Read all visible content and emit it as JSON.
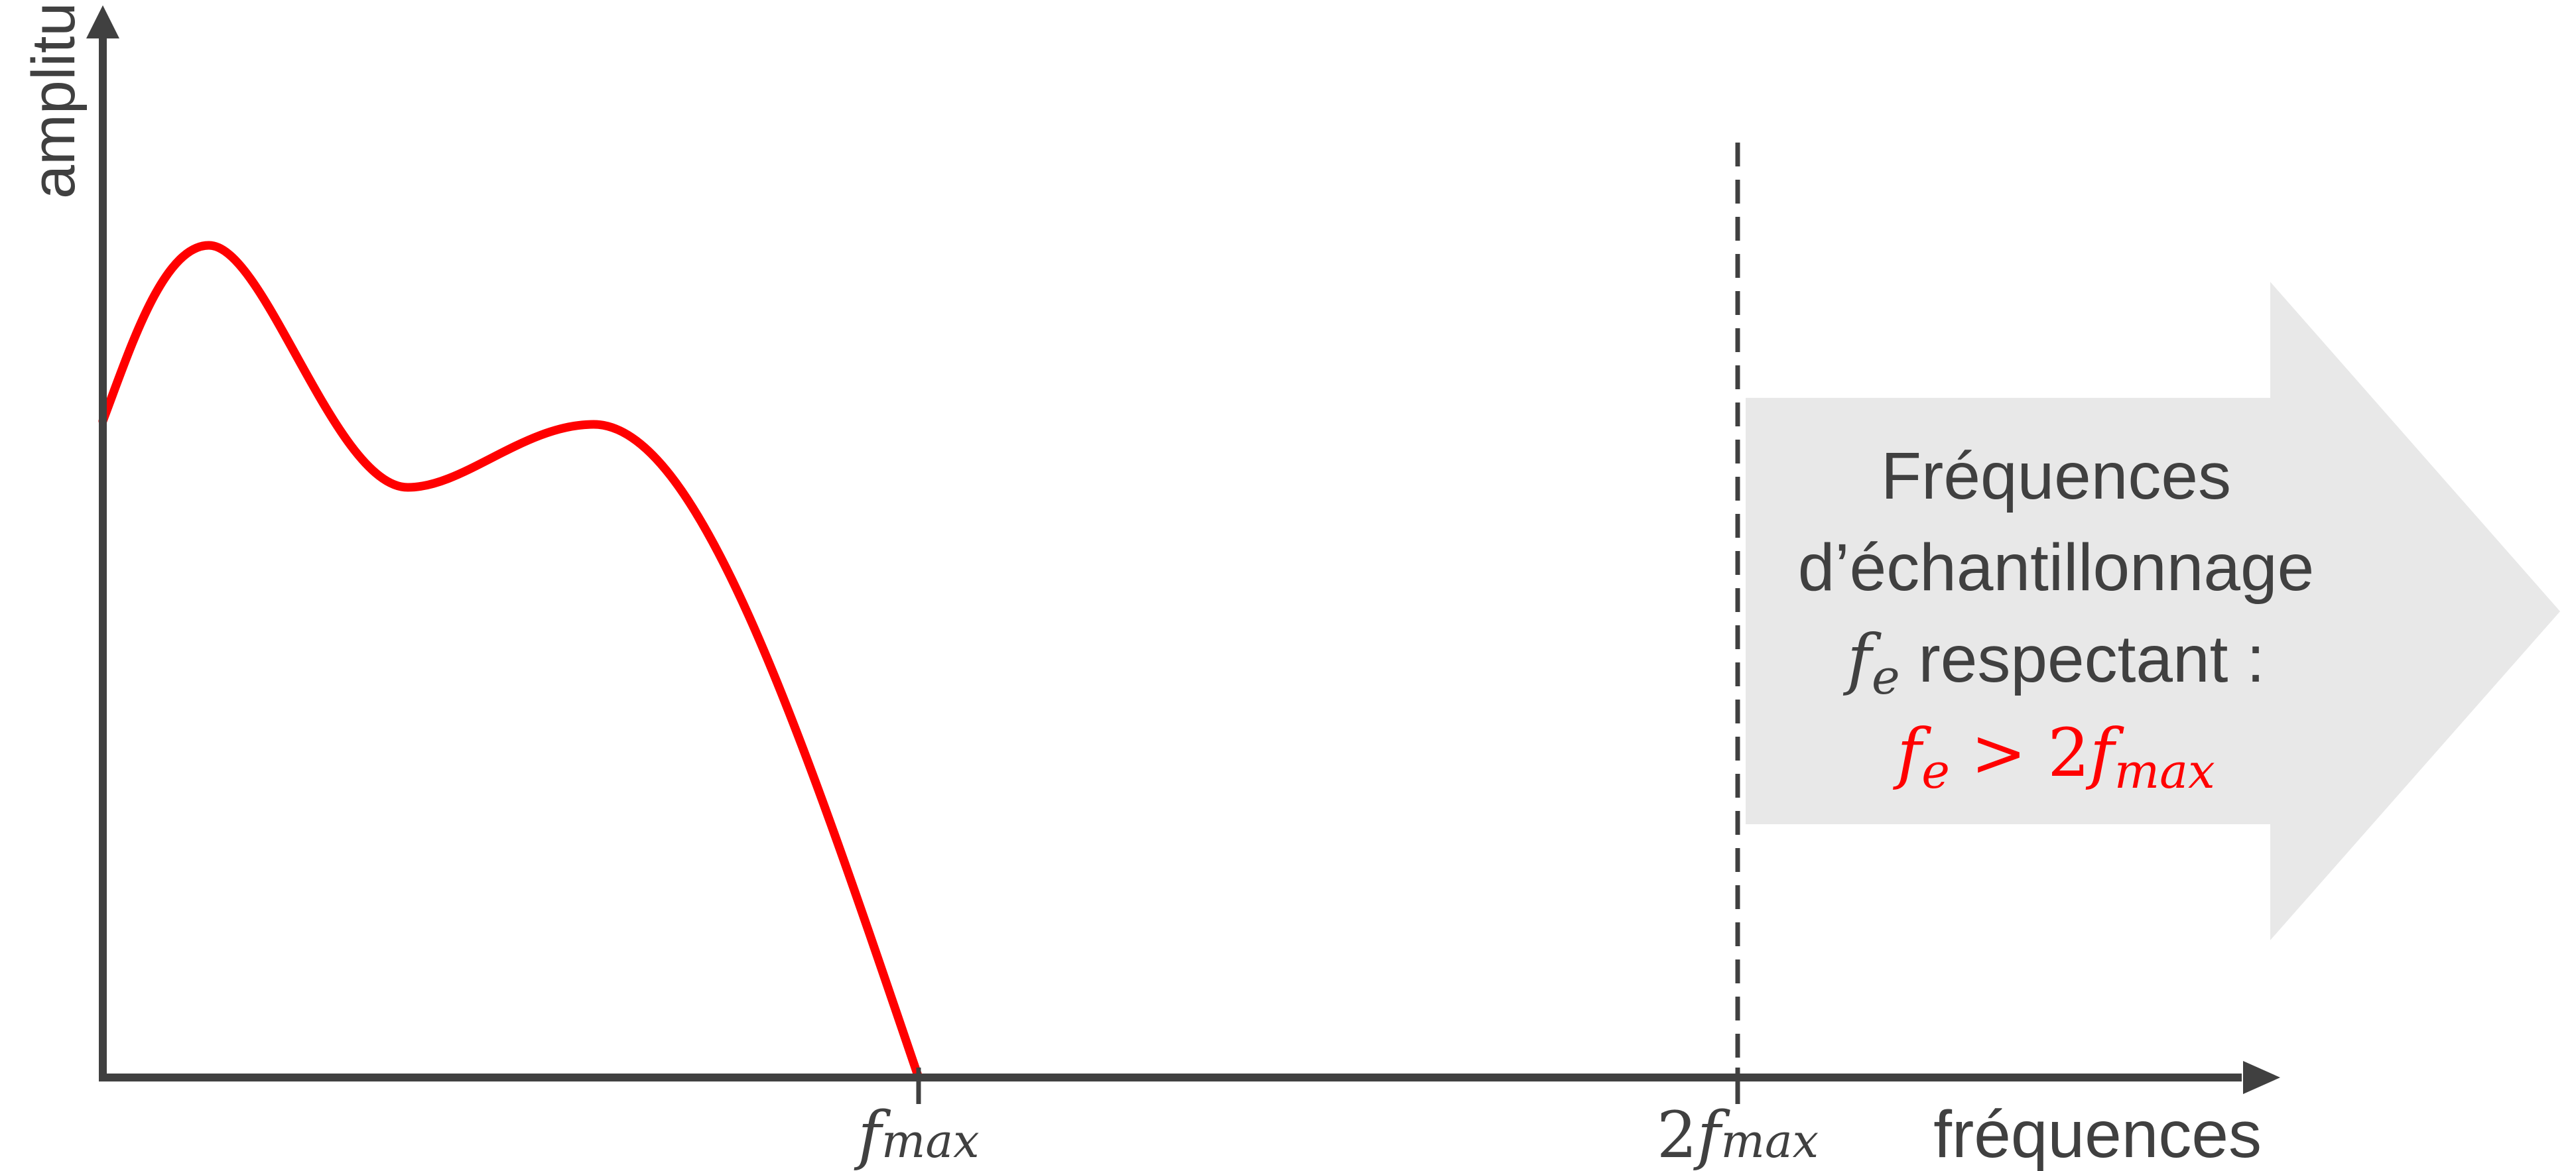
{
  "diagram": {
    "axes": {
      "y_label": "amplitudes",
      "x_label": "fréquences"
    },
    "ticks": {
      "fmax": {
        "f": "f",
        "sub": "max"
      },
      "two_fmax": {
        "coef": "2",
        "f": "f",
        "sub": "max"
      }
    },
    "arrow_box": {
      "line1": "Fréquences",
      "line2": "d’échantillonnage",
      "line3_symbol": "f",
      "line3_sub": "e",
      "line3_text": " respectant :",
      "condition": {
        "f": "f",
        "sub": "e",
        "op": " > 2",
        "f2": "f",
        "sub2": "max"
      }
    },
    "colors": {
      "axis": "#404040",
      "curve": "#ff0000",
      "arrow_fill": "#e8e8e8",
      "text": "#404040",
      "condition": "#ff0000"
    }
  }
}
